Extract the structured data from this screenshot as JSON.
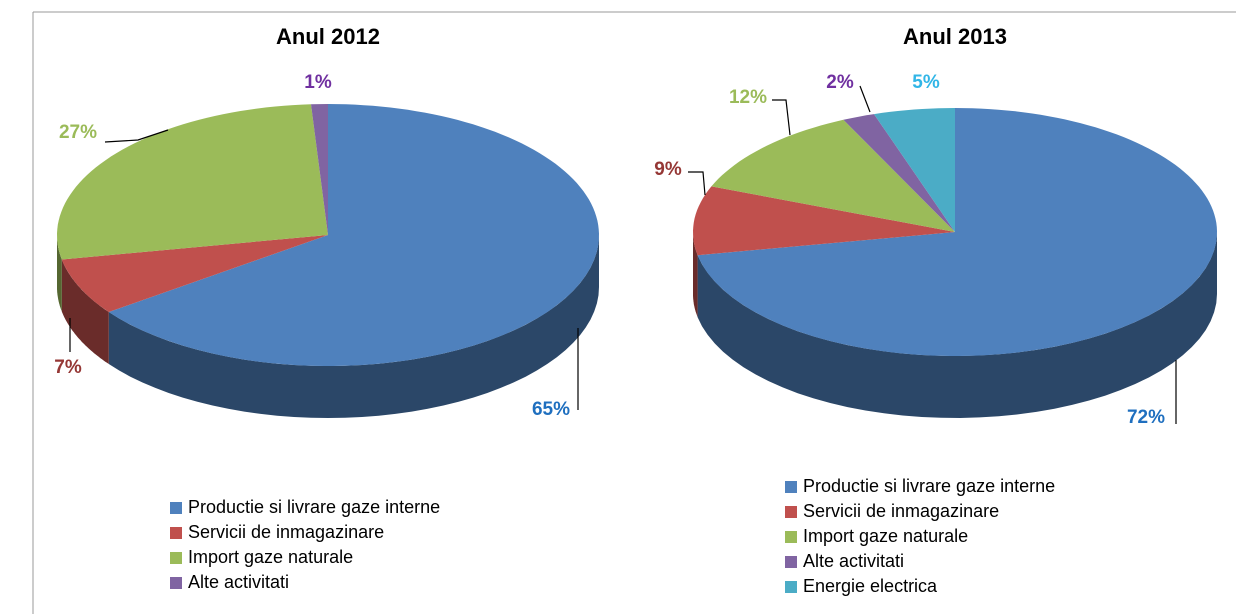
{
  "chart_data": [
    {
      "type": "pie",
      "title": "Anul 2012",
      "categories": [
        "Productie si livrare gaze interne",
        "Servicii de inmagazinare",
        "Import gaze naturale",
        "Alte activitati"
      ],
      "values": [
        65,
        7,
        27,
        1
      ],
      "value_labels": [
        "65%",
        "7%",
        "27%",
        "1%"
      ],
      "colors": [
        "#4f81bd",
        "#c0504d",
        "#9bbb59",
        "#8064a2"
      ],
      "label_colors": [
        "#1f6fbf",
        "#953735",
        "#9bbb59",
        "#7030a0"
      ]
    },
    {
      "type": "pie",
      "title": "Anul 2013",
      "categories": [
        "Productie si livrare gaze interne",
        "Servicii de inmagazinare",
        "Import gaze naturale",
        "Alte activitati",
        "Energie electrica"
      ],
      "values": [
        72,
        9,
        12,
        2,
        5
      ],
      "value_labels": [
        "72%",
        "9%",
        "12%",
        "2%",
        "5%"
      ],
      "colors": [
        "#4f81bd",
        "#c0504d",
        "#9bbb59",
        "#8064a2",
        "#4bacc6"
      ],
      "label_colors": [
        "#1f6fbf",
        "#953735",
        "#9bbb59",
        "#7030a0",
        "#31b6e7"
      ]
    }
  ]
}
